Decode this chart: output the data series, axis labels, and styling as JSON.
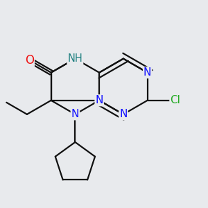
{
  "background_color": "#e8eaed",
  "colors": {
    "N": "#1010ff",
    "NH": "#208080",
    "O": "#ee1111",
    "Cl": "#22aa22",
    "bond": "#111111"
  },
  "bond_lw": 1.6,
  "font_size": 11.0,
  "dbo": 0.011,
  "bl": 0.135
}
